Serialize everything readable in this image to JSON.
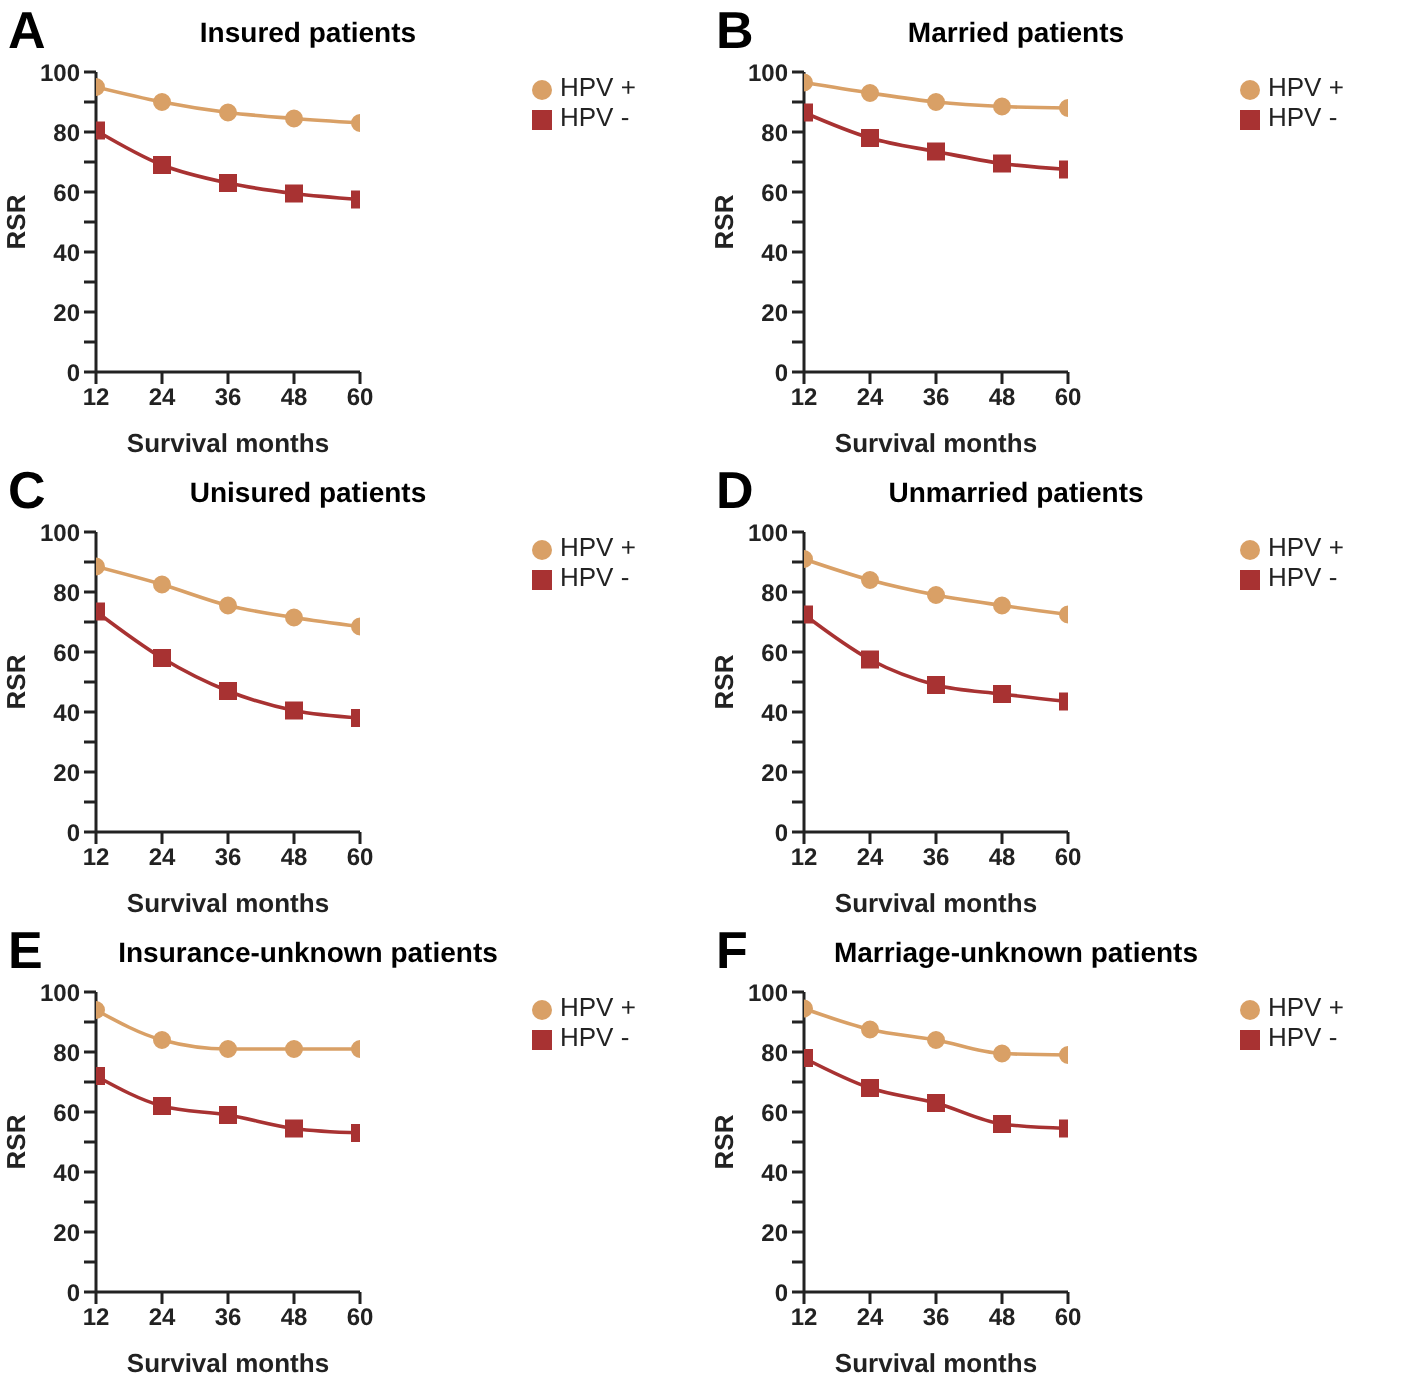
{
  "chart_data": [
    {
      "type": "line",
      "title": "Insured patients",
      "annotations": [
        "A"
      ],
      "xlabel": "Survival months",
      "ylabel": "RSR",
      "x": [
        12,
        24,
        36,
        48,
        60
      ],
      "xlim": [
        12,
        60
      ],
      "xticks": [
        12,
        24,
        36,
        48,
        60
      ],
      "ylim": [
        0,
        100
      ],
      "yticks": [
        0,
        {
          "value": 10,
          "label": null
        },
        20,
        {
          "value": 30,
          "label": null
        },
        40,
        {
          "value": 50,
          "label": null
        },
        60,
        {
          "value": 70,
          "label": null
        },
        80,
        {
          "value": 90,
          "label": null
        },
        100
      ],
      "legend": "top right",
      "series": [
        {
          "name": "HPV +",
          "color": "#d9a066",
          "marker": "circle",
          "values": [
            95,
            90,
            86.5,
            84.5,
            83
          ]
        },
        {
          "name": "HPV -",
          "color": "#a83232",
          "marker": "square",
          "values": [
            80.5,
            69,
            63,
            59.5,
            57.5
          ]
        }
      ]
    },
    {
      "type": "line",
      "title": "Married patients",
      "annotations": [
        "B"
      ],
      "xlabel": "Survival months",
      "ylabel": "RSR",
      "x": [
        12,
        24,
        36,
        48,
        60
      ],
      "xlim": [
        12,
        60
      ],
      "xticks": [
        12,
        24,
        36,
        48,
        60
      ],
      "ylim": [
        0,
        100
      ],
      "yticks": [
        0,
        {
          "value": 10,
          "label": null
        },
        20,
        {
          "value": 30,
          "label": null
        },
        40,
        {
          "value": 50,
          "label": null
        },
        60,
        {
          "value": 70,
          "label": null
        },
        80,
        {
          "value": 90,
          "label": null
        },
        100
      ],
      "legend": "top right",
      "series": [
        {
          "name": "HPV +",
          "color": "#d9a066",
          "marker": "circle",
          "values": [
            96.5,
            93,
            90,
            88.5,
            88
          ]
        },
        {
          "name": "HPV -",
          "color": "#a83232",
          "marker": "square",
          "values": [
            86.5,
            78,
            73.5,
            69.5,
            67.5
          ]
        }
      ]
    },
    {
      "type": "line",
      "title": "Unisured patients",
      "annotations": [
        "C"
      ],
      "xlabel": "Survival months",
      "ylabel": "RSR",
      "x": [
        12,
        24,
        36,
        48,
        60
      ],
      "xlim": [
        12,
        60
      ],
      "xticks": [
        12,
        24,
        36,
        48,
        60
      ],
      "ylim": [
        0,
        100
      ],
      "yticks": [
        0,
        {
          "value": 10,
          "label": null
        },
        20,
        {
          "value": 30,
          "label": null
        },
        40,
        {
          "value": 50,
          "label": null
        },
        60,
        {
          "value": 70,
          "label": null
        },
        80,
        {
          "value": 90,
          "label": null
        },
        100
      ],
      "legend": "top right",
      "series": [
        {
          "name": "HPV +",
          "color": "#d9a066",
          "marker": "circle",
          "values": [
            88.5,
            82.5,
            75.5,
            71.5,
            68.5
          ]
        },
        {
          "name": "HPV -",
          "color": "#a83232",
          "marker": "square",
          "values": [
            73.5,
            58,
            47,
            40.5,
            38
          ]
        }
      ]
    },
    {
      "type": "line",
      "title": "Unmarried patients",
      "annotations": [
        "D"
      ],
      "xlabel": "Survival months",
      "ylabel": "RSR",
      "x": [
        12,
        24,
        36,
        48,
        60
      ],
      "xlim": [
        12,
        60
      ],
      "xticks": [
        12,
        24,
        36,
        48,
        60
      ],
      "ylim": [
        0,
        100
      ],
      "yticks": [
        0,
        {
          "value": 10,
          "label": null
        },
        20,
        {
          "value": 30,
          "label": null
        },
        40,
        {
          "value": 50,
          "label": null
        },
        60,
        {
          "value": 70,
          "label": null
        },
        80,
        {
          "value": 90,
          "label": null
        },
        100
      ],
      "legend": "top right",
      "series": [
        {
          "name": "HPV +",
          "color": "#d9a066",
          "marker": "circle",
          "values": [
            91,
            84,
            79,
            75.5,
            72.5
          ]
        },
        {
          "name": "HPV -",
          "color": "#a83232",
          "marker": "square",
          "values": [
            72.5,
            57.5,
            49,
            46,
            43.5
          ]
        }
      ]
    },
    {
      "type": "line",
      "title": "Insurance-unknown patients",
      "annotations": [
        "E"
      ],
      "xlabel": "Survival months",
      "ylabel": "RSR",
      "x": [
        12,
        24,
        36,
        48,
        60
      ],
      "xlim": [
        12,
        60
      ],
      "xticks": [
        12,
        24,
        36,
        48,
        60
      ],
      "ylim": [
        0,
        100
      ],
      "yticks": [
        0,
        {
          "value": 10,
          "label": null
        },
        20,
        {
          "value": 30,
          "label": null
        },
        40,
        {
          "value": 50,
          "label": null
        },
        60,
        {
          "value": 70,
          "label": null
        },
        80,
        {
          "value": 90,
          "label": null
        },
        100
      ],
      "legend": "top right",
      "series": [
        {
          "name": "HPV +",
          "color": "#d9a066",
          "marker": "circle",
          "values": [
            94,
            84,
            81,
            81,
            81
          ]
        },
        {
          "name": "HPV -",
          "color": "#a83232",
          "marker": "square",
          "values": [
            72,
            62,
            59,
            54.5,
            53
          ]
        }
      ]
    },
    {
      "type": "line",
      "title": "Marriage-unknown patients",
      "annotations": [
        "F"
      ],
      "xlabel": "Survival months",
      "ylabel": "RSR",
      "x": [
        12,
        24,
        36,
        48,
        60
      ],
      "xlim": [
        12,
        60
      ],
      "xticks": [
        12,
        24,
        36,
        48,
        60
      ],
      "ylim": [
        0,
        100
      ],
      "yticks": [
        0,
        {
          "value": 10,
          "label": null
        },
        20,
        {
          "value": 30,
          "label": null
        },
        40,
        {
          "value": 50,
          "label": null
        },
        60,
        {
          "value": 70,
          "label": null
        },
        80,
        {
          "value": 90,
          "label": null
        },
        100
      ],
      "legend": "top right",
      "series": [
        {
          "name": "HPV +",
          "color": "#d9a066",
          "marker": "circle",
          "values": [
            94.5,
            87.5,
            84,
            79.5,
            79
          ]
        },
        {
          "name": "HPV -",
          "color": "#a83232",
          "marker": "square",
          "values": [
            78,
            68,
            63,
            56,
            54.5
          ]
        }
      ]
    }
  ]
}
